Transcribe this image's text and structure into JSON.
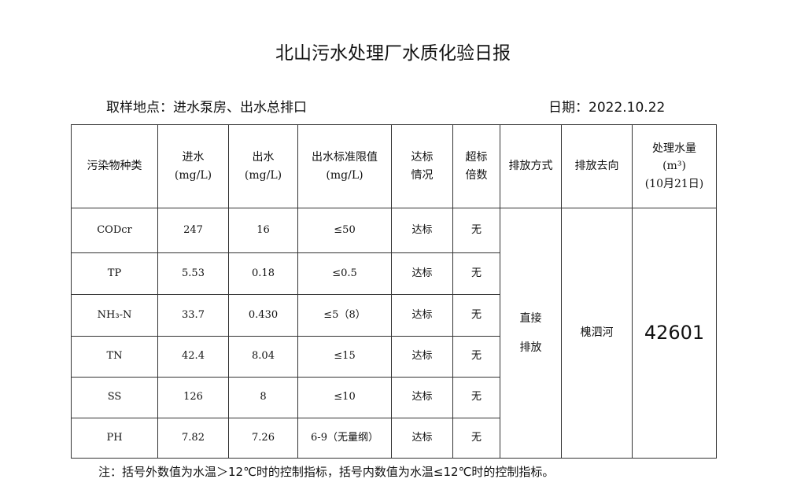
{
  "title": "北山污水处理厂水质化验日报",
  "location": "取样地点：进水泵房、出水总排口",
  "date": "日期：2022.10.22",
  "headers": {
    "pollutant": "污染物种类",
    "inflow": "进水",
    "inflow_unit": "(mg/L)",
    "outflow": "出水",
    "outflow_unit": "(mg/L)",
    "limit": "出水标准限值",
    "limit_unit": "(mg/L)",
    "status": "达标情况",
    "exceed": "超标倍数",
    "method": "排放方式",
    "direction": "排放去向",
    "volume": "处理水量",
    "volume_unit": "(m³)",
    "volume_date": "(10月21日)"
  },
  "rows": [
    {
      "pollutant": "CODcr",
      "inflow": "247",
      "outflow": "16",
      "limit": "≤50",
      "status": "达标",
      "exceed": "无"
    },
    {
      "pollutant": "TP",
      "inflow": "5.53",
      "outflow": "0.18",
      "limit": "≤0.5",
      "status": "达标",
      "exceed": "无"
    },
    {
      "pollutant": "NH₃-N",
      "inflow": "33.7",
      "outflow": "0.430",
      "limit": "≤5（8）",
      "status": "达标",
      "exceed": "无"
    },
    {
      "pollutant": "TN",
      "inflow": "42.4",
      "outflow": "8.04",
      "limit": "≤15",
      "status": "达标",
      "exceed": "无"
    },
    {
      "pollutant": "SS",
      "inflow": "126",
      "outflow": "8",
      "limit": "≤10",
      "status": "达标",
      "exceed": "无"
    },
    {
      "pollutant": "PH",
      "inflow": "7.82",
      "outflow": "7.26",
      "limit": "6-9（无量纲）",
      "status": "达标",
      "exceed": "无"
    }
  ],
  "method": "直接排放",
  "direction": "槐泗河",
  "volume": "42601",
  "note": "注：括号外数值为水温＞12℃时的控制指标，括号内数值为水温≤12℃时的控制指标。"
}
